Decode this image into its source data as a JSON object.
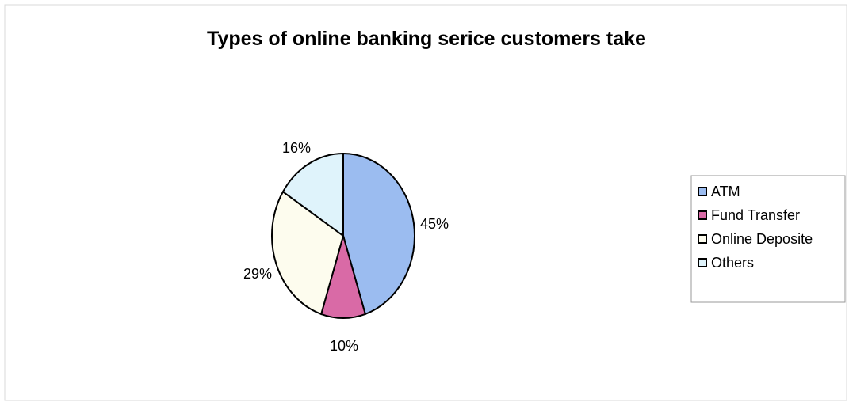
{
  "chart_data": {
    "type": "pie",
    "title": "Types of online banking serice customers take",
    "categories": [
      "ATM",
      "Fund Transfer",
      "Online Deposite",
      "Others"
    ],
    "values": [
      45,
      10,
      29,
      16
    ],
    "labels": [
      "45%",
      "10%",
      "29%",
      "16%"
    ],
    "colors": [
      "#9bbcf0",
      "#d96aa6",
      "#fdfcee",
      "#dff3fb"
    ],
    "legend": {
      "position": "right",
      "entries": [
        "ATM",
        "Fund Transfer",
        "Online Deposite",
        "Others"
      ]
    }
  }
}
